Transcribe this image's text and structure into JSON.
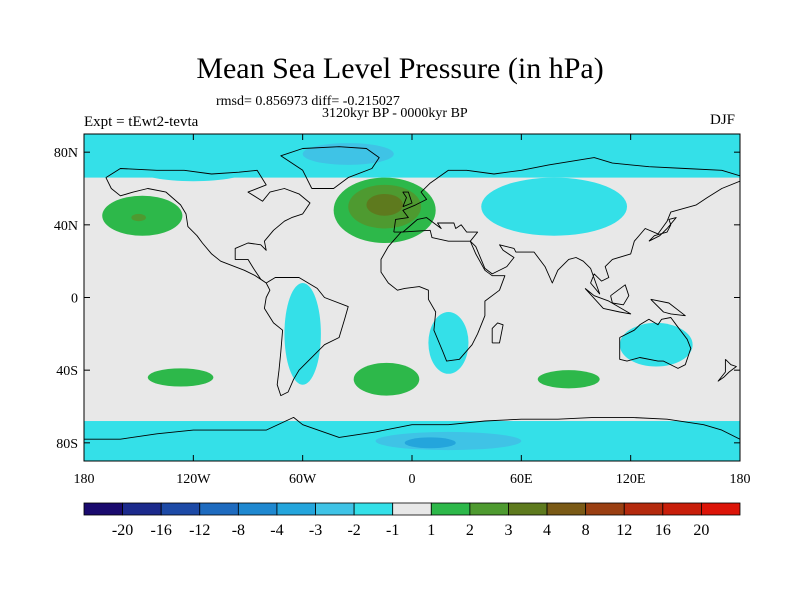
{
  "header": {
    "title": "Mean Sea Level Pressure (in hPa)",
    "stats": "rmsd= 0.856973 diff= -0.215027",
    "period": "3120kyr BP - 0000kyr BP",
    "experiment": "Expt = tEwt2-tevta",
    "season": "DJF"
  },
  "chart_data": {
    "type": "heatmap",
    "title": "Mean Sea Level Pressure (in hPa)",
    "subtitle": "3120kyr BP - 0000kyr BP",
    "annotations": [
      "rmsd= 0.856973 diff= -0.215027",
      "Expt = tEwt2-tevta",
      "DJF"
    ],
    "xlabel": "",
    "ylabel": "",
    "xlim": [
      -180,
      180
    ],
    "ylim": [
      -90,
      90
    ],
    "x_ticks": [
      {
        "value": -180,
        "label": "180"
      },
      {
        "value": -120,
        "label": "120W"
      },
      {
        "value": -60,
        "label": "60W"
      },
      {
        "value": 0,
        "label": "0"
      },
      {
        "value": 60,
        "label": "60E"
      },
      {
        "value": 120,
        "label": "120E"
      },
      {
        "value": 180,
        "label": "180"
      }
    ],
    "y_ticks": [
      {
        "value": 80,
        "label": "80N"
      },
      {
        "value": 40,
        "label": "40N"
      },
      {
        "value": 0,
        "label": "0"
      },
      {
        "value": -40,
        "label": "40S"
      },
      {
        "value": -80,
        "label": "80S"
      }
    ],
    "colorbar": {
      "labels": [
        "-20",
        "-16",
        "-12",
        "-8",
        "-4",
        "-3",
        "-2",
        "-1",
        "1",
        "2",
        "3",
        "4",
        "8",
        "12",
        "16",
        "20"
      ],
      "colors": [
        "#1a0a6e",
        "#1c2a8c",
        "#1d4aa6",
        "#1e6bbf",
        "#1f88d0",
        "#24a5dc",
        "#3fc3e6",
        "#34e0e8",
        "#e8e8e8",
        "#2db84a",
        "#4e9a30",
        "#5e7a1e",
        "#7a5a16",
        "#9a3f12",
        "#b42a0e",
        "#c81e0a",
        "#dc1408"
      ]
    },
    "field_regions": [
      {
        "label": "1 to 2",
        "color": "#2db84a",
        "lon": -148,
        "lat": 45,
        "lon_radius": 22,
        "lat_radius": 11
      },
      {
        "label": "2 to 3",
        "color": "#4e9a30",
        "lon": -150,
        "lat": 44,
        "lon_radius": 4,
        "lat_radius": 2
      },
      {
        "label": "1 to 2",
        "color": "#2db84a",
        "lon": -15,
        "lat": 48,
        "lon_radius": 28,
        "lat_radius": 18
      },
      {
        "label": "2 to 3",
        "color": "#4e9a30",
        "lon": -15,
        "lat": 50,
        "lon_radius": 20,
        "lat_radius": 12
      },
      {
        "label": "3 to 4",
        "color": "#5e7a1e",
        "lon": -15,
        "lat": 51,
        "lon_radius": 10,
        "lat_radius": 6
      },
      {
        "label": "1 to 2",
        "color": "#2db84a",
        "lon": -127,
        "lat": -44,
        "lon_radius": 18,
        "lat_radius": 5
      },
      {
        "label": "1 to 2",
        "color": "#2db84a",
        "lon": -14,
        "lat": -45,
        "lon_radius": 18,
        "lat_radius": 9
      },
      {
        "label": "1 to 2",
        "color": "#2db84a",
        "lon": 86,
        "lat": -45,
        "lon_radius": 17,
        "lat_radius": 5
      },
      {
        "label": "-2 to -1",
        "color": "#34e0e8",
        "lon": 78,
        "lat": 50,
        "lon_radius": 40,
        "lat_radius": 16
      },
      {
        "label": "-2 to -1",
        "color": "#34e0e8",
        "lon": -60,
        "lat": -20,
        "lon_radius": 10,
        "lat_radius": 28
      },
      {
        "label": "-2 to -1",
        "color": "#34e0e8",
        "lon": 20,
        "lat": -25,
        "lon_radius": 11,
        "lat_radius": 17
      },
      {
        "label": "-2 to -1",
        "color": "#34e0e8",
        "lon": 134,
        "lat": -26,
        "lon_radius": 20,
        "lat_radius": 12
      },
      {
        "label": "-2 to -1",
        "color": "#34e0e8",
        "lon": -120,
        "lat": 70,
        "lon_radius": 30,
        "lat_radius": 6
      },
      {
        "label": "-3 to -2",
        "color": "#3fc3e6",
        "lon": -35,
        "lat": 79,
        "lon_radius": 25,
        "lat_radius": 6
      },
      {
        "label": "-3 to -2",
        "color": "#3fc3e6",
        "lon": 20,
        "lat": -79,
        "lon_radius": 40,
        "lat_radius": 5
      },
      {
        "label": "-4 to -3",
        "color": "#24a5dc",
        "lon": 10,
        "lat": -80,
        "lon_radius": 14,
        "lat_radius": 3
      }
    ],
    "bands": [
      {
        "label": "-2 to -1",
        "color": "#34e0e8",
        "lat_min": 66,
        "lat_max": 90
      },
      {
        "label": "-2 to -1",
        "color": "#34e0e8",
        "lat_min": -90,
        "lat_max": -68
      }
    ]
  }
}
